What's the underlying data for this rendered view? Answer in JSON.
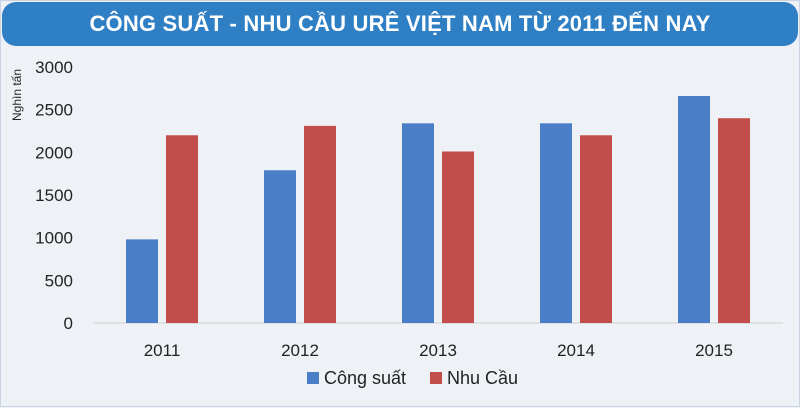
{
  "chart_data": {
    "type": "bar",
    "title": "CÔNG SUẤT - NHU CẦU URÊ VIỆT NAM TỪ 2011 ĐẾN NAY",
    "ylabel": "Nghìn tấn",
    "xlabel": "",
    "categories": [
      "2011",
      "2012",
      "2013",
      "2014",
      "2015"
    ],
    "series": [
      {
        "name": "Công suất",
        "color": "#4a7fc8",
        "values": [
          980,
          1790,
          2340,
          2340,
          2660
        ]
      },
      {
        "name": "Nhu Cầu",
        "color": "#c34d4a",
        "values": [
          2200,
          2310,
          2010,
          2200,
          2400
        ]
      }
    ],
    "ylim": [
      0,
      3000
    ],
    "yticks": [
      "0",
      "500",
      "1000",
      "1500",
      "2000",
      "2500",
      "3000"
    ],
    "grid": false,
    "legend_position": "bottom"
  }
}
